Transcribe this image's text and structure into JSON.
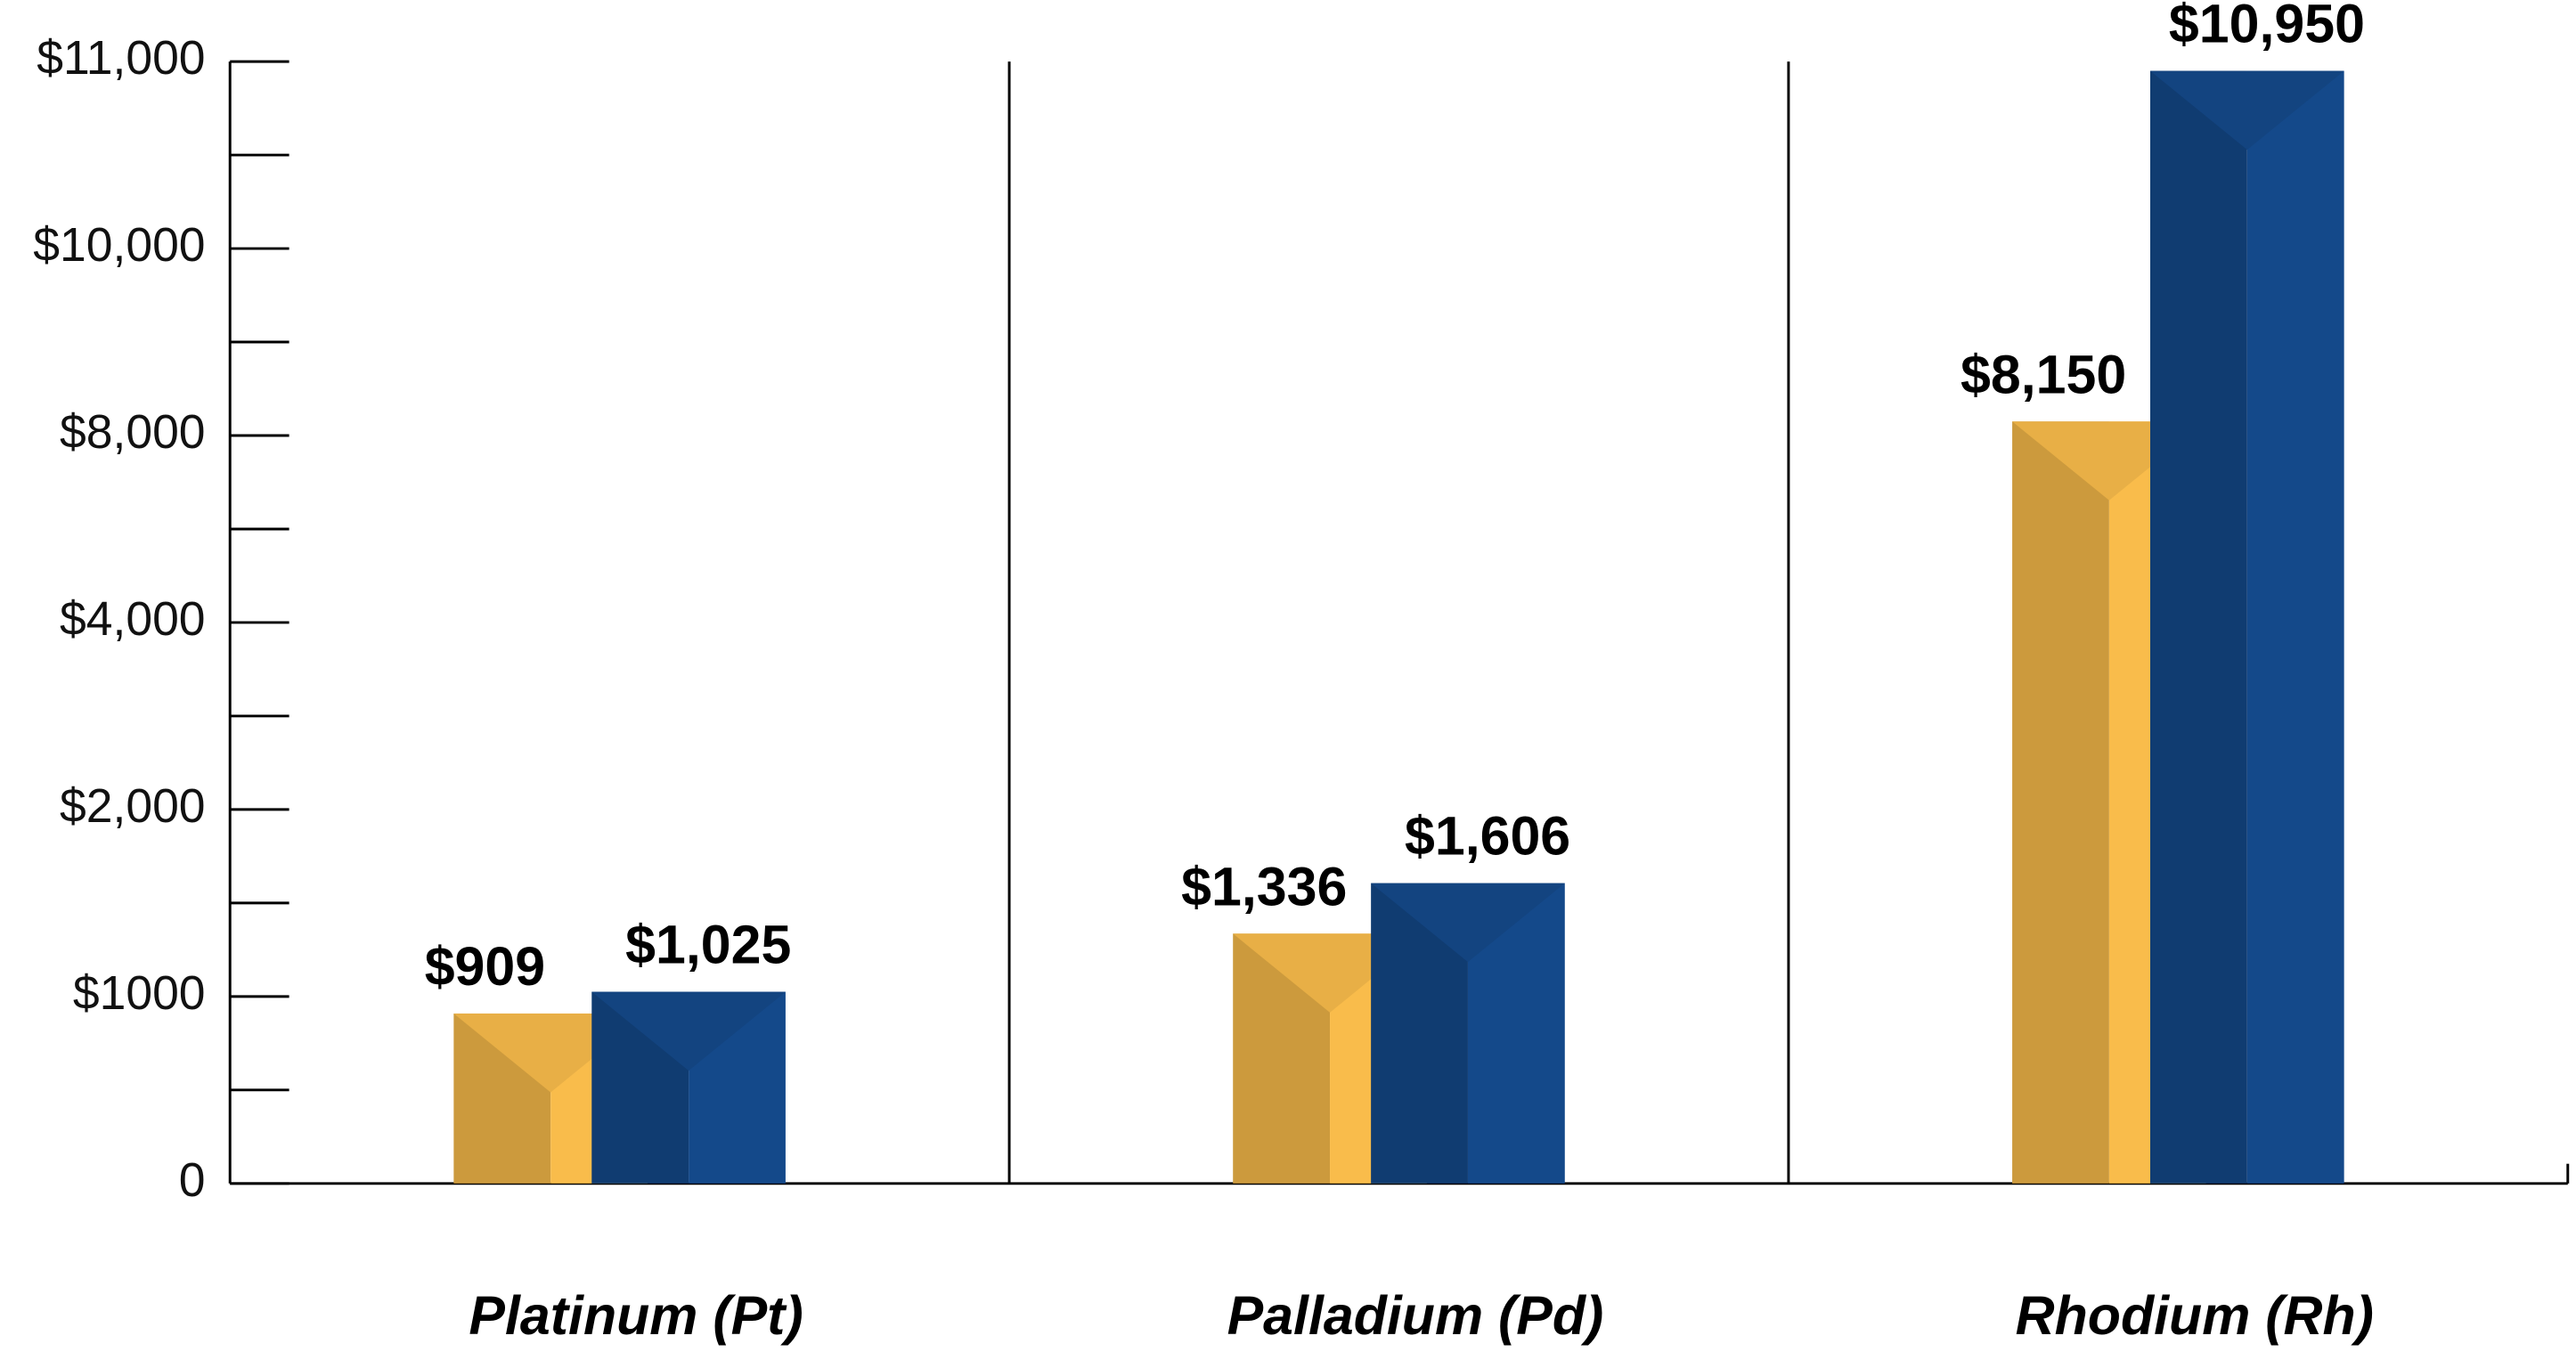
{
  "chart_data": {
    "type": "bar",
    "categories": [
      "Platinum (Pt)",
      "Palladium (Pd)",
      "Rhodium (Rh)"
    ],
    "series": [
      {
        "color": "#f9bc4b",
        "values": [
          909,
          1336,
          8150
        ],
        "value_labels": [
          "$909",
          "$1,336",
          "$8,150"
        ]
      },
      {
        "color": "#14498a",
        "values": [
          1025,
          1606,
          10950
        ],
        "value_labels": [
          "$1,025",
          "$1,606",
          "$10,950"
        ]
      }
    ],
    "ylim": [
      0,
      11000
    ],
    "yticks": [
      0,
      {
        "value": 1000,
        "label": "$1000"
      },
      {
        "value": 2000,
        "label": "$2,000"
      },
      {
        "value": 4000,
        "label": "$4,000"
      },
      {
        "value": 8000,
        "label": "$8,000"
      },
      {
        "value": 10000,
        "label": "$10,000"
      },
      {
        "value": 11000,
        "label": "$11,000"
      }
    ]
  }
}
